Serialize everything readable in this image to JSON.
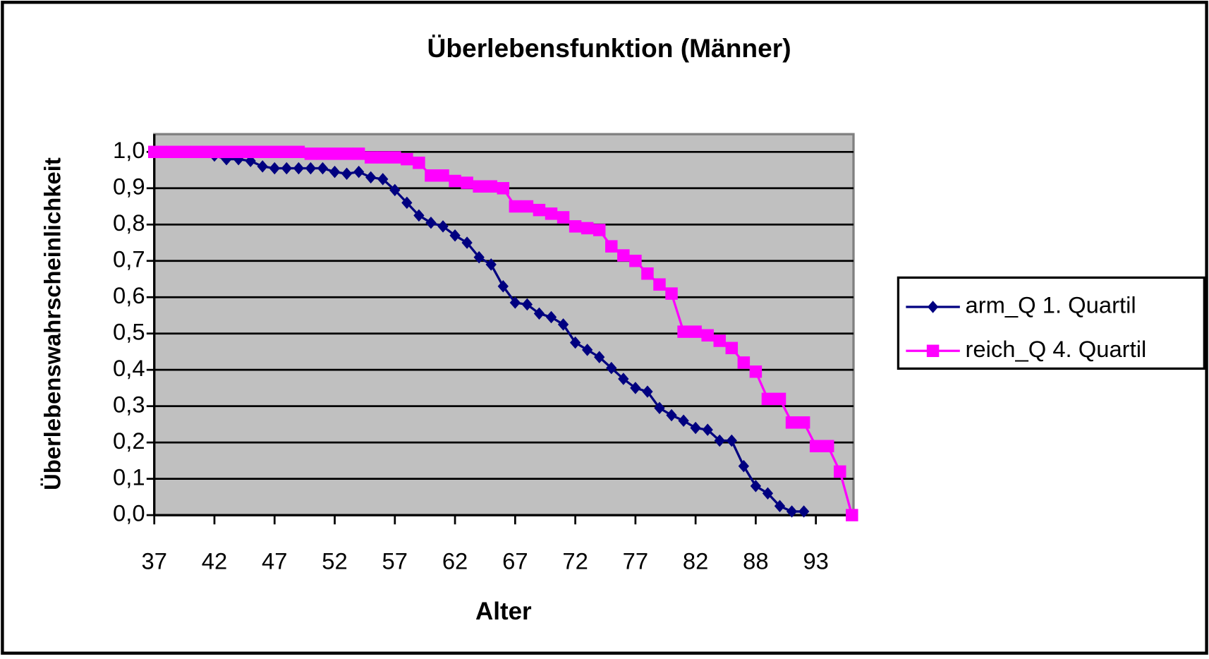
{
  "chart_data": {
    "type": "line",
    "title": "Überlebensfunktion (Männer)",
    "x_label": "Alter",
    "y_label": "Überlebenswahrscheinlichkeit",
    "categories": [
      "37",
      null,
      null,
      null,
      null,
      "42",
      null,
      null,
      null,
      null,
      "47",
      null,
      null,
      null,
      null,
      "52",
      null,
      null,
      null,
      null,
      "57",
      null,
      null,
      null,
      null,
      "62",
      null,
      null,
      null,
      null,
      "67",
      null,
      null,
      null,
      null,
      "72",
      null,
      null,
      null,
      null,
      "77",
      null,
      null,
      null,
      null,
      "82",
      null,
      null,
      null,
      null,
      "88",
      null,
      null,
      null,
      null,
      "93",
      null,
      null,
      null
    ],
    "series": [
      {
        "name": "arm_Q 1. Quartil",
        "color": "#000080",
        "marker": "diamond",
        "values": [
          1.0,
          1.0,
          1.0,
          1.0,
          1.0,
          0.99,
          0.98,
          0.98,
          0.975,
          0.96,
          0.955,
          0.955,
          0.955,
          0.955,
          0.955,
          0.945,
          0.94,
          0.945,
          0.93,
          0.925,
          0.895,
          0.86,
          0.825,
          0.805,
          0.795,
          0.77,
          0.75,
          0.71,
          0.69,
          0.63,
          0.585,
          0.58,
          0.555,
          0.545,
          0.525,
          0.475,
          0.455,
          0.435,
          0.405,
          0.375,
          0.35,
          0.34,
          0.295,
          0.275,
          0.26,
          0.24,
          0.235,
          0.205,
          0.205,
          0.135,
          0.08,
          0.06,
          0.025,
          0.01,
          0.01,
          null,
          null,
          null,
          null
        ]
      },
      {
        "name": "reich_Q 4. Quartil",
        "color": "#ff00ff",
        "marker": "square",
        "values": [
          1.0,
          1.0,
          1.0,
          1.0,
          1.0,
          1.0,
          1.0,
          1.0,
          1.0,
          1.0,
          1.0,
          1.0,
          1.0,
          0.995,
          0.995,
          0.995,
          0.995,
          0.995,
          0.985,
          0.985,
          0.985,
          0.98,
          0.97,
          0.935,
          0.935,
          0.92,
          0.915,
          0.905,
          0.905,
          0.9,
          0.85,
          0.85,
          0.84,
          0.83,
          0.82,
          0.795,
          0.79,
          0.785,
          0.74,
          0.715,
          0.7,
          0.665,
          0.635,
          0.61,
          0.505,
          0.505,
          0.495,
          0.48,
          0.46,
          0.42,
          0.395,
          0.32,
          0.32,
          0.255,
          0.255,
          0.19,
          0.19,
          0.12,
          0.0
        ]
      }
    ],
    "ylim": [
      0,
      1.0
    ],
    "yticks": [
      {
        "value": 0,
        "label": "0,0"
      },
      {
        "value": 0.1,
        "label": "0,1"
      },
      {
        "value": 0.2,
        "label": "0,2"
      },
      {
        "value": 0.3,
        "label": "0,3"
      },
      {
        "value": 0.4,
        "label": "0,4"
      },
      {
        "value": 0.5,
        "label": "0,5"
      },
      {
        "value": 0.6,
        "label": "0,6"
      },
      {
        "value": 0.7,
        "label": "0,7"
      },
      {
        "value": 0.8,
        "label": "0,8"
      },
      {
        "value": 0.9,
        "label": "0,9"
      },
      {
        "value": 1.0,
        "label": "1,0"
      }
    ],
    "grid": true,
    "legend": "right"
  }
}
